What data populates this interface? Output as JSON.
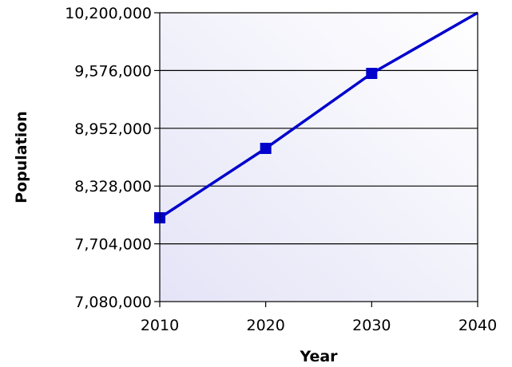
{
  "chart_data": {
    "type": "line",
    "title": "",
    "xlabel": "Year",
    "ylabel": "Population",
    "x": [
      2010,
      2020,
      2030,
      2040
    ],
    "xticks": [
      "2010",
      "2020",
      "2030",
      "2040"
    ],
    "yticks": [
      "7,080,000",
      "7,704,000",
      "8,328,000",
      "8,952,000",
      "9,576,000",
      "10,200,000"
    ],
    "ylim": [
      7080000,
      10200000
    ],
    "xlim": [
      2010,
      2040
    ],
    "grid": "horizontal",
    "legend": "none",
    "series": [
      {
        "values": [
          7985000,
          8735000,
          9545000,
          10200000
        ],
        "color": "#0000cc",
        "marker": "square",
        "markers_on": [
          true,
          true,
          true,
          false
        ]
      }
    ],
    "colors": {
      "plot_background_start": "#ffffff",
      "plot_background_end": "#e4e4f7",
      "gridline": "#000000"
    }
  }
}
